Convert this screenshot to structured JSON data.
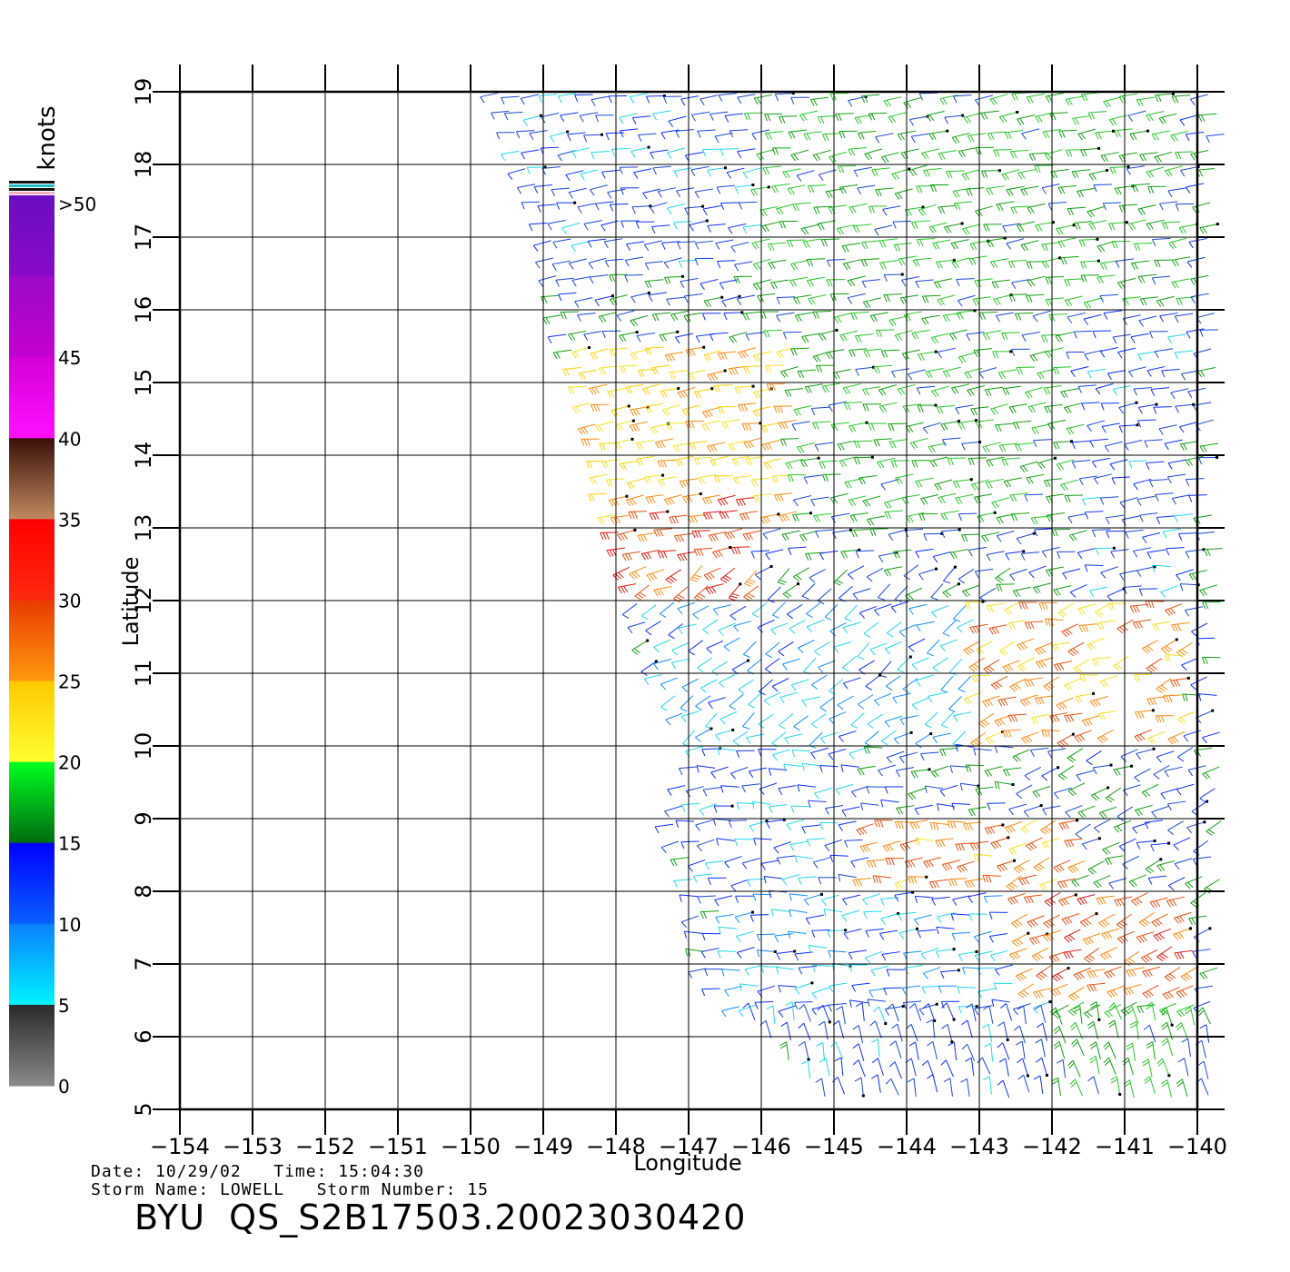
{
  "legend": {
    "unit": "knots",
    "labels": [
      ">50",
      "45",
      "40",
      "35",
      "30",
      "25",
      "20",
      "15",
      "10",
      "5",
      "0"
    ],
    "bands": [
      {
        "from": 50,
        "to": 55,
        "colors": [
          "#6a0dc0",
          "#8a0ac8"
        ]
      },
      {
        "from": 45,
        "to": 50,
        "colors": [
          "#9c0ac8",
          "#c400d0"
        ]
      },
      {
        "from": 40,
        "to": 45,
        "colors": [
          "#d400d8",
          "#ff10ff"
        ]
      },
      {
        "from": 35,
        "to": 40,
        "colors": [
          "#3a1008",
          "#c08a60"
        ]
      },
      {
        "from": 30,
        "to": 35,
        "colors": [
          "#ff0000",
          "#ff2a10"
        ]
      },
      {
        "from": 25,
        "to": 30,
        "colors": [
          "#e83a00",
          "#ff9a10"
        ]
      },
      {
        "from": 20,
        "to": 25,
        "colors": [
          "#ffc800",
          "#ffff30"
        ]
      },
      {
        "from": 15,
        "to": 20,
        "colors": [
          "#00ff20",
          "#006a10"
        ]
      },
      {
        "from": 10,
        "to": 15,
        "colors": [
          "#0000ff",
          "#0a60ff"
        ]
      },
      {
        "from": 5,
        "to": 10,
        "colors": [
          "#0a80ff",
          "#00f4ff"
        ]
      },
      {
        "from": 0,
        "to": 5,
        "colors": [
          "#2a2a2a",
          "#8a8a8a"
        ]
      }
    ]
  },
  "map": {
    "xlabel": "Longitude",
    "ylabel": "Latitude",
    "lon_range": [
      -154,
      -140
    ],
    "lat_range": [
      5,
      19
    ],
    "lon_ticks": [
      "−154",
      "−153",
      "−152",
      "−151",
      "−150",
      "−149",
      "−148",
      "−147",
      "−146",
      "−145",
      "−144",
      "−143",
      "−142",
      "−141",
      "−140"
    ],
    "lat_ticks": [
      "5",
      "6",
      "7",
      "8",
      "9",
      "10",
      "11",
      "12",
      "13",
      "14",
      "15",
      "16",
      "17",
      "18",
      "19"
    ],
    "grid": true,
    "swath": {
      "type": "wind vector barbs",
      "west_edge_lon": [
        [
          19,
          -149.7
        ],
        [
          17,
          -149.0
        ],
        [
          16,
          -148.9
        ],
        [
          15,
          -148.5
        ],
        [
          13,
          -148.1
        ],
        [
          12,
          -147.8
        ],
        [
          11,
          -147.5
        ],
        [
          10,
          -146.9
        ],
        [
          9,
          -147.3
        ],
        [
          8,
          -147.0
        ],
        [
          7,
          -146.9
        ],
        [
          6,
          -146.0
        ],
        [
          5,
          -145.0
        ]
      ],
      "wind_regions": [
        {
          "lat": [
            16.5,
            19
          ],
          "lon": [
            -149.5,
            -146
          ],
          "speed_kt": 12
        },
        {
          "lat": [
            15.5,
            19
          ],
          "lon": [
            -146,
            -140
          ],
          "speed_kt": 17
        },
        {
          "lat": [
            13,
            15.5
          ],
          "lon": [
            -148.5,
            -145.5
          ],
          "speed_kt": 24
        },
        {
          "lat": [
            12,
            13.5
          ],
          "lon": [
            -148,
            -146
          ],
          "speed_kt": 29
        },
        {
          "lat": [
            13,
            16
          ],
          "lon": [
            -145.5,
            -141.5
          ],
          "speed_kt": 17
        },
        {
          "lat": [
            12,
            16
          ],
          "lon": [
            -141.5,
            -140
          ],
          "speed_kt": 12
        },
        {
          "lat": [
            10,
            12
          ],
          "lon": [
            -147.5,
            -143
          ],
          "speed_kt": 8
        },
        {
          "lat": [
            10,
            12
          ],
          "lon": [
            -143,
            -140
          ],
          "speed_kt": 26
        },
        {
          "lat": [
            8,
            10
          ],
          "lon": [
            -147,
            -144.5
          ],
          "speed_kt": 11
        },
        {
          "lat": [
            8,
            9
          ],
          "lon": [
            -144.5,
            -141.5
          ],
          "speed_kt": 27
        },
        {
          "lat": [
            6,
            8
          ],
          "lon": [
            -146.5,
            -142.5
          ],
          "speed_kt": 9
        },
        {
          "lat": [
            6,
            8
          ],
          "lon": [
            -142.5,
            -140
          ],
          "speed_kt": 28
        },
        {
          "lat": [
            5,
            6.5
          ],
          "lon": [
            -145.5,
            -142
          ],
          "speed_kt": 12
        },
        {
          "lat": [
            5,
            6.5
          ],
          "lon": [
            -142,
            -140
          ],
          "speed_kt": 17
        }
      ]
    }
  },
  "info": {
    "line1": "Date: 10/29/02   Time: 15:04:30",
    "line2": "Storm Name: LOWELL   Storm Number: 15",
    "title": "BYU  QS_S2B17503.20023030420"
  }
}
